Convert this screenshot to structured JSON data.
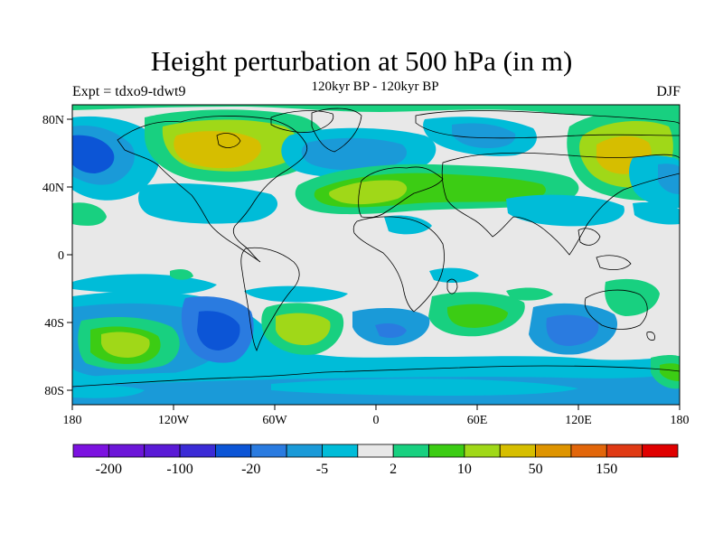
{
  "title": "Height perturbation at 500 hPa (in m)",
  "left_label": "Expt = tdxo9-tdwt9",
  "center_label": "120kyr BP - 120kyr BP",
  "right_label": "DJF",
  "lat_ticks": [
    "80N",
    "40N",
    "0",
    "40S",
    "80S"
  ],
  "lon_ticks": [
    "180",
    "120W",
    "60W",
    "0",
    "60E",
    "120E",
    "180"
  ],
  "colorbar": {
    "colors": [
      "#7c12e0",
      "#6c16d8",
      "#5a1ad6",
      "#3b2bd6",
      "#0c55d6",
      "#2a7be0",
      "#1a9ad8",
      "#00bcd8",
      "#e8e8e8",
      "#18d080",
      "#3ccc14",
      "#a0d818",
      "#d6be00",
      "#de9400",
      "#e2660a",
      "#e03a14",
      "#e00000"
    ],
    "labels": [
      "-200",
      "-100",
      "-20",
      "-5",
      "2",
      "10",
      "50",
      "150"
    ]
  },
  "colors": {
    "background": "#e8e8e8",
    "coastline": "#000000"
  }
}
